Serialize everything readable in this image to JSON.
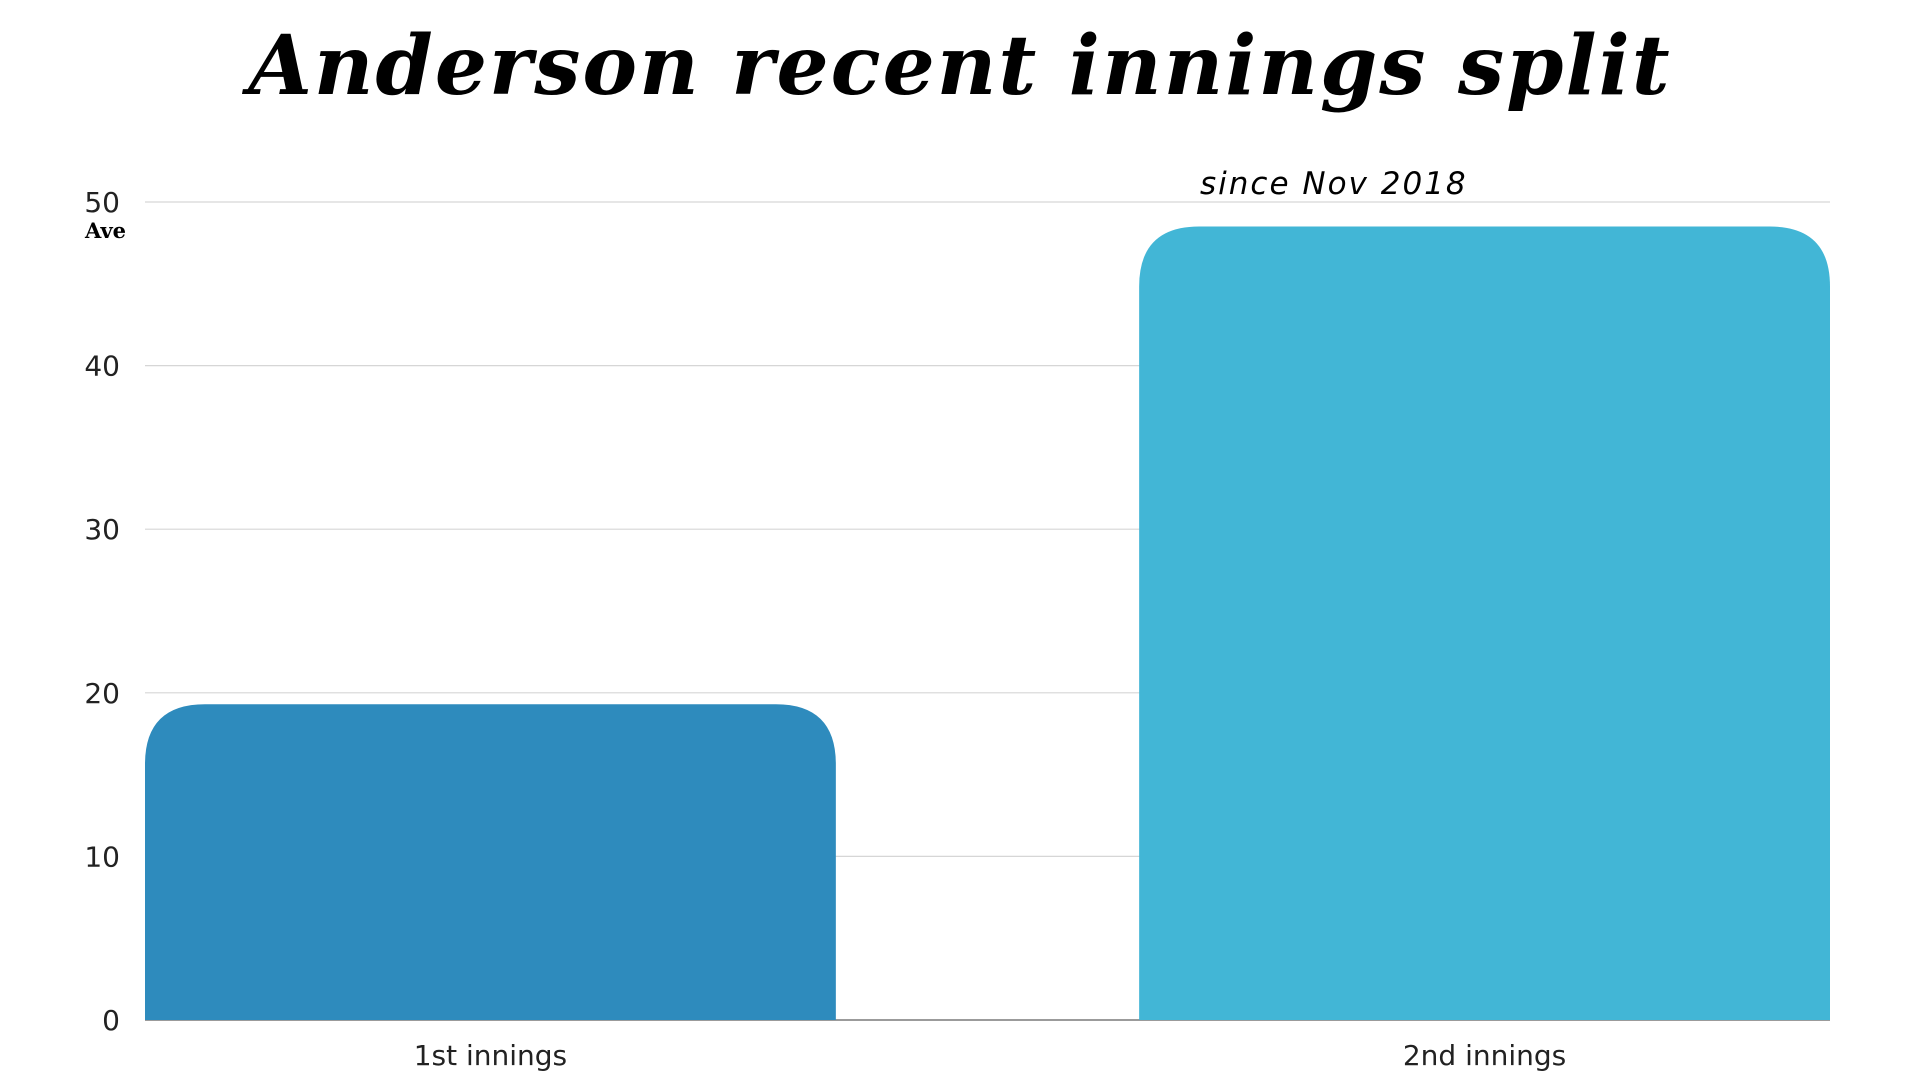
{
  "chart_data": {
    "type": "bar",
    "title": "Anderson recent innings split",
    "subtitle": "since Nov 2018",
    "ylabel": "Ave",
    "xlabel": "",
    "categories": [
      "1st innings",
      "2nd innings"
    ],
    "values": [
      19.3,
      48.5
    ],
    "colors": [
      "#2e8bbd",
      "#42b6d6"
    ],
    "ylim": [
      0,
      50
    ],
    "yticks": [
      0,
      10,
      20,
      30,
      40,
      50
    ],
    "grid": true,
    "legend": "none"
  }
}
